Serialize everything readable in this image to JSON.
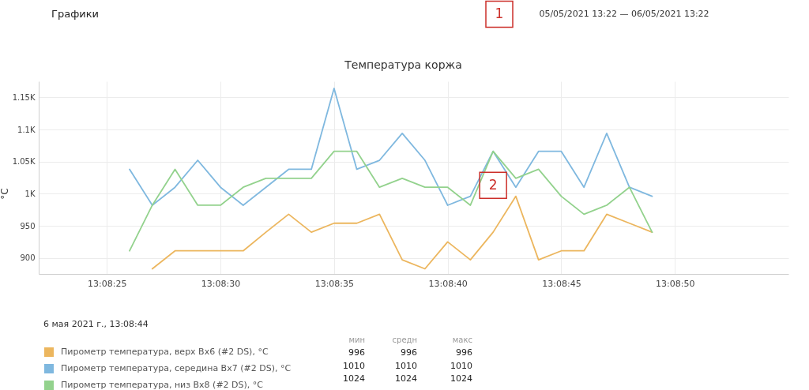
{
  "chart_data": {
    "type": "line",
    "title": "Температура коржа",
    "ylabel": "°C",
    "x": [
      "2021-05-06T13:08:26",
      "2021-05-06T13:08:27",
      "2021-05-06T13:08:28",
      "2021-05-06T13:08:29",
      "2021-05-06T13:08:30",
      "2021-05-06T13:08:31",
      "2021-05-06T13:08:32",
      "2021-05-06T13:08:33",
      "2021-05-06T13:08:34",
      "2021-05-06T13:08:35",
      "2021-05-06T13:08:36",
      "2021-05-06T13:08:37",
      "2021-05-06T13:08:38",
      "2021-05-06T13:08:39",
      "2021-05-06T13:08:40",
      "2021-05-06T13:08:41",
      "2021-05-06T13:08:42",
      "2021-05-06T13:08:43",
      "2021-05-06T13:08:44",
      "2021-05-06T13:08:45",
      "2021-05-06T13:08:46",
      "2021-05-06T13:08:47",
      "2021-05-06T13:08:48",
      "2021-05-06T13:08:49"
    ],
    "series": [
      {
        "name": "Пирометр температура, верх Вх6 (#2 DS), °C",
        "color": "#ecb65e",
        "values": [
          null,
          883,
          911,
          911,
          911,
          911,
          940,
          968,
          940,
          954,
          954,
          968,
          897,
          883,
          925,
          897,
          940,
          996,
          897,
          911,
          911,
          968,
          954,
          940
        ]
      },
      {
        "name": "Пирометр температура, середина Вх7 (#2 DS), °C",
        "color": "#7fb8df",
        "values": [
          1038,
          982,
          1010,
          1052,
          1010,
          982,
          1010,
          1038,
          1038,
          1164,
          1038,
          1052,
          1094,
          1052,
          982,
          996,
          1066,
          1010,
          1066,
          1066,
          1010,
          1094,
          1010,
          996
        ]
      },
      {
        "name": "Пирометр температура, низ Вх8 (#2 DS), °C",
        "color": "#93d28d",
        "values": [
          911,
          982,
          1038,
          982,
          982,
          1010,
          1024,
          1024,
          1024,
          1066,
          1066,
          1010,
          1024,
          1010,
          1010,
          982,
          1066,
          1024,
          1038,
          996,
          968,
          982,
          1010,
          940
        ]
      }
    ],
    "xlim": [
      "2021-05-06T13:08:22",
      "2021-05-06T13:08:55"
    ],
    "xticks": [
      {
        "value": "2021-05-06T13:08:25",
        "label": "13:08:25"
      },
      {
        "value": "2021-05-06T13:08:30",
        "label": "13:08:30"
      },
      {
        "value": "2021-05-06T13:08:35",
        "label": "13:08:35"
      },
      {
        "value": "2021-05-06T13:08:40",
        "label": "13:08:40"
      },
      {
        "value": "2021-05-06T13:08:45",
        "label": "13:08:45"
      },
      {
        "value": "2021-05-06T13:08:50",
        "label": "13:08:50"
      }
    ],
    "ylim": [
      875,
      1175
    ],
    "yticks": [
      900,
      950,
      {
        "value": 1000,
        "label": "1K"
      },
      {
        "value": 1050,
        "label": "1.05K"
      },
      {
        "value": 1100,
        "label": "1.1K"
      },
      {
        "value": 1150,
        "label": "1.15K"
      }
    ],
    "grid": true,
    "legend": "bottom",
    "annotations": [
      "Графики",
      "05/05/2021 13:22 — 06/05/2021 13:22",
      "1",
      {
        "text": "2",
        "x": "2021-05-06T13:08:42",
        "y": 1013
      },
      "6 мая 2021 г., 13:08:44",
      "мин",
      "средн",
      "макс",
      "996",
      "996",
      "996",
      "1010",
      "1010",
      "1010",
      "1024",
      "1024",
      "1024"
    ]
  }
}
